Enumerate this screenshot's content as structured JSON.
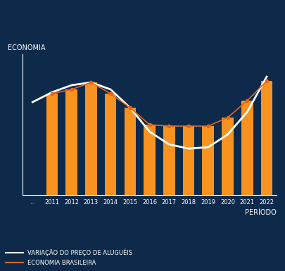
{
  "chart_data": {
    "type": "bar",
    "y_label": "ECONOMIA",
    "x_label": "PERÍODO",
    "categories": [
      "...",
      "2011",
      "2012",
      "2013",
      "2014",
      "2015",
      "2016",
      "2017",
      "2018",
      "2019",
      "2020",
      "2021",
      "2022"
    ],
    "series": [
      {
        "type": "bar",
        "color": "#f7931e",
        "values": [
          null,
          72,
          75,
          80,
          72,
          62,
          50,
          49,
          49,
          49,
          55,
          67,
          81
        ]
      },
      {
        "type": "line",
        "name": "VARIAÇÃO DO PREÇO DE ALUGUÉIS",
        "color": "#ffffff",
        "line_style": "solid",
        "values": [
          66,
          73,
          78,
          80,
          75,
          62,
          45,
          36,
          33,
          34,
          43,
          59,
          84
        ]
      },
      {
        "type": "line",
        "name": "ECONOMIA BRASILEIRA",
        "color": "#e8641b",
        "marker": "o",
        "line_style": "solid",
        "values": [
          null,
          72,
          75,
          80,
          72,
          62,
          50,
          49,
          49,
          49,
          55,
          67,
          81
        ]
      }
    ],
    "ylim": [
      0,
      100
    ],
    "tick_labels": "x",
    "grid": false,
    "legend": "lower left"
  }
}
